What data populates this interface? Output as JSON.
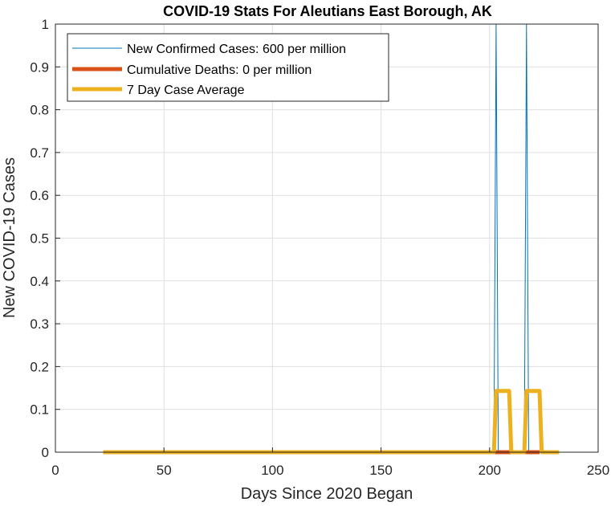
{
  "chart_data": {
    "type": "line",
    "title": "COVID-19 Stats For Aleutians East Borough, AK",
    "xlabel": "Days Since 2020 Began",
    "ylabel": "New COVID-19 Cases",
    "xlim": [
      0,
      250
    ],
    "ylim": [
      0,
      1
    ],
    "xticks": [
      0,
      50,
      100,
      150,
      200,
      250
    ],
    "yticks": [
      0,
      0.1,
      0.2,
      0.3,
      0.4,
      0.5,
      0.6,
      0.7,
      0.8,
      0.9,
      1
    ],
    "grid": true,
    "legend_position": "top-left",
    "series": [
      {
        "name": "New Confirmed Cases: 600 per million",
        "color": "#0072BD",
        "x": [
          22,
          202,
          203,
          204,
          216,
          217,
          218,
          232
        ],
        "y": [
          0,
          0,
          1,
          0,
          0,
          1,
          0,
          0
        ]
      },
      {
        "name": "Cumulative Deaths: 0 per million",
        "color": "#D95319",
        "x": [
          202,
          209,
          216,
          223
        ],
        "y": [
          0,
          0,
          0,
          0
        ]
      },
      {
        "name": "7 Day Case Average",
        "color": "#EDB120",
        "x": [
          22,
          202,
          203,
          209,
          210,
          216,
          217,
          223,
          224,
          232
        ],
        "y": [
          0,
          0,
          0.143,
          0.143,
          0,
          0,
          0.143,
          0.143,
          0,
          0
        ]
      }
    ]
  }
}
